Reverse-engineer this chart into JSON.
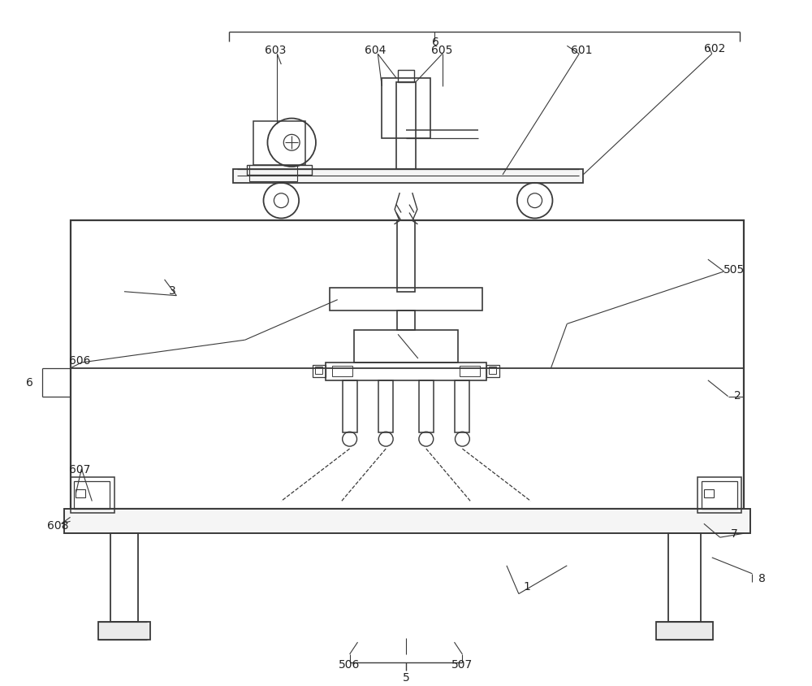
{
  "bg_color": "#ffffff",
  "line_color": "#3a3a3a",
  "label_color": "#222222",
  "fig_width": 10.0,
  "fig_height": 8.45
}
